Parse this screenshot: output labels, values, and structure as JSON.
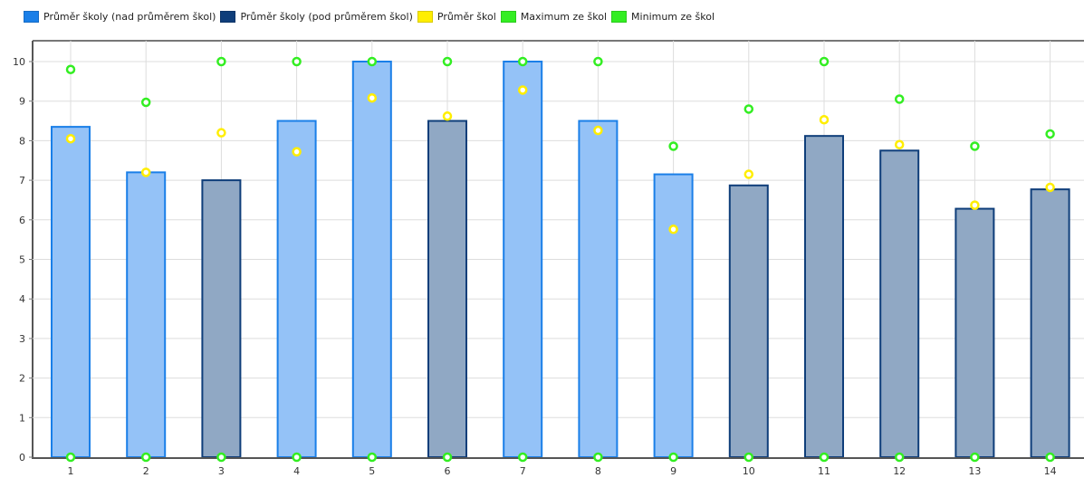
{
  "chart_data": {
    "type": "bar",
    "title": "",
    "xlabel": "",
    "ylabel": "",
    "ylim": [
      0,
      10
    ],
    "yticks": [
      "0",
      "1",
      "2",
      "3",
      "4",
      "5",
      "6",
      "7",
      "8",
      "9",
      "10"
    ],
    "categories": [
      "1",
      "2",
      "3",
      "4",
      "5",
      "6",
      "7",
      "8",
      "9",
      "10",
      "11",
      "12",
      "13",
      "14"
    ],
    "legend_position": "top-left",
    "grid": true,
    "series": [
      {
        "name": "Průměr školy (nad průměrem škol)",
        "kind": "bar",
        "color": "#1a7fe8",
        "values": [
          8.35,
          7.2,
          null,
          8.5,
          10.0,
          null,
          10.0,
          8.5,
          7.15,
          null,
          null,
          null,
          null,
          null
        ]
      },
      {
        "name": "Průměr školy (pod průměrem škol)",
        "kind": "bar",
        "color": "#0f3e7a",
        "values": [
          null,
          null,
          7.0,
          null,
          null,
          8.5,
          null,
          null,
          null,
          6.87,
          8.12,
          7.75,
          6.28,
          6.77
        ]
      },
      {
        "name": "Průměr škol",
        "kind": "point",
        "color": "#ffee00",
        "values": [
          8.05,
          7.2,
          8.2,
          7.72,
          9.08,
          8.62,
          9.28,
          8.26,
          5.76,
          7.15,
          8.53,
          7.9,
          6.37,
          6.82
        ]
      },
      {
        "name": "Maximum ze škol",
        "kind": "point",
        "color": "#33ee22",
        "values": [
          9.8,
          8.97,
          10.0,
          10.0,
          10.0,
          10.0,
          10.0,
          10.0,
          7.86,
          8.8,
          10.0,
          9.05,
          7.86,
          8.17
        ]
      },
      {
        "name": "Minimum ze škol",
        "kind": "point",
        "color": "#33ee22",
        "values": [
          0,
          0,
          0,
          0,
          0,
          0,
          0,
          0,
          0,
          0,
          0,
          0,
          0,
          0
        ]
      }
    ]
  }
}
